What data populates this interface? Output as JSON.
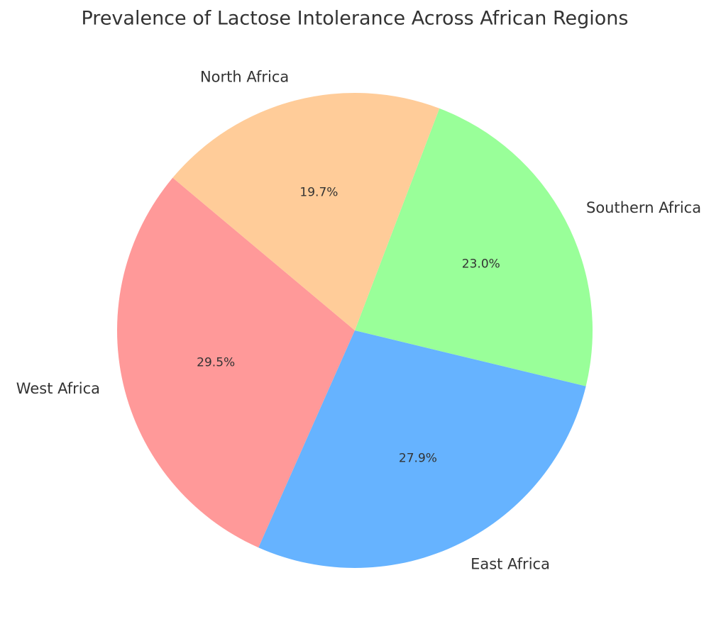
{
  "chart_data": {
    "type": "pie",
    "title": "Prevalence of Lactose Intolerance Across African Regions",
    "categories": [
      "West Africa",
      "East Africa",
      "Southern Africa",
      "North Africa"
    ],
    "values": [
      29.5,
      27.9,
      23.0,
      19.7
    ],
    "value_labels": [
      "29.5%",
      "27.9%",
      "23.0%",
      "19.7%"
    ],
    "colors": [
      "#ff9999",
      "#66b3ff",
      "#99ff99",
      "#ffcc99"
    ],
    "startangle": 140,
    "direction": "counterclockwise"
  }
}
